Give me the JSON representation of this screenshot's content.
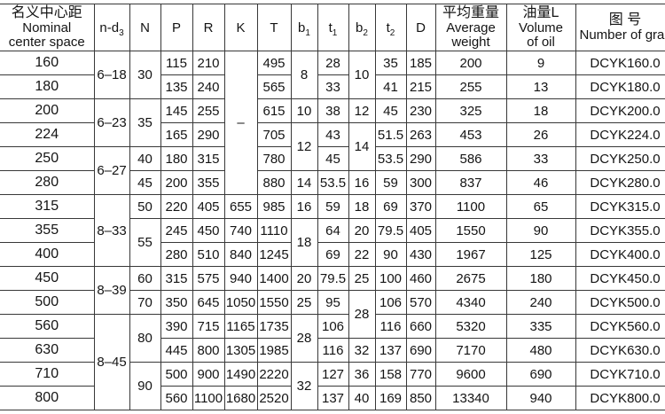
{
  "colors": {
    "background": "#ffffff",
    "border": "#383838",
    "text": "#141414"
  },
  "table": {
    "header": {
      "center": {
        "zh": "名义中心距",
        "en1": "Nominal",
        "en2": "center space"
      },
      "nd3": {
        "base": "n-d",
        "sub": "3"
      },
      "N": "N",
      "P": "P",
      "R": "R",
      "K": "K",
      "T": "T",
      "b1": {
        "base": "b",
        "sub": "1"
      },
      "t1": {
        "base": "t",
        "sub": "1"
      },
      "b2": {
        "base": "b",
        "sub": "2"
      },
      "t2": {
        "base": "t",
        "sub": "2"
      },
      "D": "D",
      "weight": {
        "zh": "平均重量",
        "en1": "Average",
        "en2": "weight"
      },
      "oil": {
        "zh": "油量L",
        "en1": "Volume",
        "en2": "of oil"
      },
      "graph": {
        "zh": "图 号",
        "en": "Number of graph n"
      }
    },
    "rows": [
      {
        "cells": [
          {
            "c": "center",
            "v": "160"
          },
          {
            "c": "nd3",
            "v": "6–18",
            "rs": 2
          },
          {
            "c": "N",
            "v": "30",
            "rs": 2
          },
          {
            "c": "P",
            "v": "115"
          },
          {
            "c": "R",
            "v": "210"
          },
          {
            "c": "K",
            "v": "–",
            "rs": 6
          },
          {
            "c": "T",
            "v": "495"
          },
          {
            "c": "b1",
            "v": "8",
            "rs": 2
          },
          {
            "c": "t1",
            "v": "28"
          },
          {
            "c": "b2",
            "v": "10",
            "rs": 2
          },
          {
            "c": "t2",
            "v": "35"
          },
          {
            "c": "D",
            "v": "185"
          },
          {
            "c": "weight",
            "v": "200"
          },
          {
            "c": "oil",
            "v": "9"
          },
          {
            "c": "graph",
            "v": "DCYK160.0"
          }
        ]
      },
      {
        "cells": [
          {
            "c": "center",
            "v": "180"
          },
          {
            "c": "P",
            "v": "135"
          },
          {
            "c": "R",
            "v": "240"
          },
          {
            "c": "T",
            "v": "565"
          },
          {
            "c": "t1",
            "v": "33"
          },
          {
            "c": "t2",
            "v": "41"
          },
          {
            "c": "D",
            "v": "215"
          },
          {
            "c": "weight",
            "v": "255"
          },
          {
            "c": "oil",
            "v": "13"
          },
          {
            "c": "graph",
            "v": "DCYK180.0"
          }
        ]
      },
      {
        "cells": [
          {
            "c": "center",
            "v": "200"
          },
          {
            "c": "nd3",
            "v": "6–23",
            "rs": 2
          },
          {
            "c": "N",
            "v": "35",
            "rs": 2
          },
          {
            "c": "P",
            "v": "145"
          },
          {
            "c": "R",
            "v": "255"
          },
          {
            "c": "T",
            "v": "615"
          },
          {
            "c": "b1",
            "v": "10"
          },
          {
            "c": "t1",
            "v": "38"
          },
          {
            "c": "b2",
            "v": "12"
          },
          {
            "c": "t2",
            "v": "45"
          },
          {
            "c": "D",
            "v": "230"
          },
          {
            "c": "weight",
            "v": "325"
          },
          {
            "c": "oil",
            "v": "18"
          },
          {
            "c": "graph",
            "v": "DCYK200.0"
          }
        ]
      },
      {
        "cells": [
          {
            "c": "center",
            "v": "224"
          },
          {
            "c": "P",
            "v": "165"
          },
          {
            "c": "R",
            "v": "290"
          },
          {
            "c": "T",
            "v": "705"
          },
          {
            "c": "b1",
            "v": "12",
            "rs": 2
          },
          {
            "c": "t1",
            "v": "43"
          },
          {
            "c": "b2",
            "v": "14",
            "rs": 2
          },
          {
            "c": "t2",
            "v": "51.5"
          },
          {
            "c": "D",
            "v": "263"
          },
          {
            "c": "weight",
            "v": "453"
          },
          {
            "c": "oil",
            "v": "26"
          },
          {
            "c": "graph",
            "v": "DCYK224.0"
          }
        ]
      },
      {
        "cells": [
          {
            "c": "center",
            "v": "250"
          },
          {
            "c": "nd3",
            "v": "6–27",
            "rs": 2
          },
          {
            "c": "N",
            "v": "40"
          },
          {
            "c": "P",
            "v": "180"
          },
          {
            "c": "R",
            "v": "315"
          },
          {
            "c": "T",
            "v": "780"
          },
          {
            "c": "t1",
            "v": "45"
          },
          {
            "c": "t2",
            "v": "53.5"
          },
          {
            "c": "D",
            "v": "290"
          },
          {
            "c": "weight",
            "v": "586"
          },
          {
            "c": "oil",
            "v": "33"
          },
          {
            "c": "graph",
            "v": "DCYK250.0"
          }
        ]
      },
      {
        "cells": [
          {
            "c": "center",
            "v": "280"
          },
          {
            "c": "N",
            "v": "45"
          },
          {
            "c": "P",
            "v": "200"
          },
          {
            "c": "R",
            "v": "355"
          },
          {
            "c": "T",
            "v": "880"
          },
          {
            "c": "b1",
            "v": "14"
          },
          {
            "c": "t1",
            "v": "53.5"
          },
          {
            "c": "b2",
            "v": "16"
          },
          {
            "c": "t2",
            "v": "59"
          },
          {
            "c": "D",
            "v": "300"
          },
          {
            "c": "weight",
            "v": "837"
          },
          {
            "c": "oil",
            "v": "46"
          },
          {
            "c": "graph",
            "v": "DCYK280.0"
          }
        ]
      },
      {
        "cells": [
          {
            "c": "center",
            "v": "315"
          },
          {
            "c": "nd3",
            "v": "8–33",
            "rs": 3
          },
          {
            "c": "N",
            "v": "50"
          },
          {
            "c": "P",
            "v": "220"
          },
          {
            "c": "R",
            "v": "405"
          },
          {
            "c": "K",
            "v": "655"
          },
          {
            "c": "T",
            "v": "985"
          },
          {
            "c": "b1",
            "v": "16"
          },
          {
            "c": "t1",
            "v": "59"
          },
          {
            "c": "b2",
            "v": "18"
          },
          {
            "c": "t2",
            "v": "69"
          },
          {
            "c": "D",
            "v": "370"
          },
          {
            "c": "weight",
            "v": "1100"
          },
          {
            "c": "oil",
            "v": "65"
          },
          {
            "c": "graph",
            "v": "DCYK315.0"
          }
        ]
      },
      {
        "cells": [
          {
            "c": "center",
            "v": "355"
          },
          {
            "c": "N",
            "v": "55",
            "rs": 2
          },
          {
            "c": "P",
            "v": "245"
          },
          {
            "c": "R",
            "v": "450"
          },
          {
            "c": "K",
            "v": "740"
          },
          {
            "c": "T",
            "v": "1110"
          },
          {
            "c": "b1",
            "v": "18",
            "rs": 2
          },
          {
            "c": "t1",
            "v": "64"
          },
          {
            "c": "b2",
            "v": "20"
          },
          {
            "c": "t2",
            "v": "79.5"
          },
          {
            "c": "D",
            "v": "405"
          },
          {
            "c": "weight",
            "v": "1550"
          },
          {
            "c": "oil",
            "v": "90"
          },
          {
            "c": "graph",
            "v": "DCYK355.0"
          }
        ]
      },
      {
        "cells": [
          {
            "c": "center",
            "v": "400"
          },
          {
            "c": "P",
            "v": "280"
          },
          {
            "c": "R",
            "v": "510"
          },
          {
            "c": "K",
            "v": "840"
          },
          {
            "c": "T",
            "v": "1245"
          },
          {
            "c": "t1",
            "v": "69"
          },
          {
            "c": "b2",
            "v": "22"
          },
          {
            "c": "t2",
            "v": "90"
          },
          {
            "c": "D",
            "v": "430"
          },
          {
            "c": "weight",
            "v": "1967"
          },
          {
            "c": "oil",
            "v": "125"
          },
          {
            "c": "graph",
            "v": "DCYK400.0"
          }
        ]
      },
      {
        "cells": [
          {
            "c": "center",
            "v": "450"
          },
          {
            "c": "nd3",
            "v": "8–39",
            "rs": 2
          },
          {
            "c": "N",
            "v": "60"
          },
          {
            "c": "P",
            "v": "315"
          },
          {
            "c": "R",
            "v": "575"
          },
          {
            "c": "K",
            "v": "940"
          },
          {
            "c": "T",
            "v": "1400"
          },
          {
            "c": "b1",
            "v": "20"
          },
          {
            "c": "t1",
            "v": "79.5"
          },
          {
            "c": "b2",
            "v": "25"
          },
          {
            "c": "t2",
            "v": "100"
          },
          {
            "c": "D",
            "v": "460"
          },
          {
            "c": "weight",
            "v": "2675"
          },
          {
            "c": "oil",
            "v": "180"
          },
          {
            "c": "graph",
            "v": "DCYK450.0"
          }
        ]
      },
      {
        "cells": [
          {
            "c": "center",
            "v": "500"
          },
          {
            "c": "N",
            "v": "70"
          },
          {
            "c": "P",
            "v": "350"
          },
          {
            "c": "R",
            "v": "645"
          },
          {
            "c": "K",
            "v": "1050"
          },
          {
            "c": "T",
            "v": "1550"
          },
          {
            "c": "b1",
            "v": "25"
          },
          {
            "c": "t1",
            "v": "95"
          },
          {
            "c": "b2",
            "v": "28",
            "rs": 2
          },
          {
            "c": "t2",
            "v": "106"
          },
          {
            "c": "D",
            "v": "570"
          },
          {
            "c": "weight",
            "v": "4340"
          },
          {
            "c": "oil",
            "v": "240"
          },
          {
            "c": "graph",
            "v": "DCYK500.0"
          }
        ]
      },
      {
        "cells": [
          {
            "c": "center",
            "v": "560"
          },
          {
            "c": "nd3",
            "v": "8–45",
            "rs": 4
          },
          {
            "c": "N",
            "v": "80",
            "rs": 2
          },
          {
            "c": "P",
            "v": "390"
          },
          {
            "c": "R",
            "v": "715"
          },
          {
            "c": "K",
            "v": "1165"
          },
          {
            "c": "T",
            "v": "1735"
          },
          {
            "c": "b1",
            "v": "28",
            "rs": 2
          },
          {
            "c": "t1",
            "v": "106"
          },
          {
            "c": "t2",
            "v": "116"
          },
          {
            "c": "D",
            "v": "660"
          },
          {
            "c": "weight",
            "v": "5320"
          },
          {
            "c": "oil",
            "v": "335"
          },
          {
            "c": "graph",
            "v": "DCYK560.0"
          }
        ]
      },
      {
        "cells": [
          {
            "c": "center",
            "v": "630"
          },
          {
            "c": "P",
            "v": "445"
          },
          {
            "c": "R",
            "v": "800"
          },
          {
            "c": "K",
            "v": "1305"
          },
          {
            "c": "T",
            "v": "1985"
          },
          {
            "c": "t1",
            "v": "116"
          },
          {
            "c": "b2",
            "v": "32"
          },
          {
            "c": "t2",
            "v": "137"
          },
          {
            "c": "D",
            "v": "690"
          },
          {
            "c": "weight",
            "v": "7170"
          },
          {
            "c": "oil",
            "v": "480"
          },
          {
            "c": "graph",
            "v": "DCYK630.0"
          }
        ]
      },
      {
        "cells": [
          {
            "c": "center",
            "v": "710"
          },
          {
            "c": "N",
            "v": "90",
            "rs": 2
          },
          {
            "c": "P",
            "v": "500"
          },
          {
            "c": "R",
            "v": "900"
          },
          {
            "c": "K",
            "v": "1490"
          },
          {
            "c": "T",
            "v": "2220"
          },
          {
            "c": "b1",
            "v": "32",
            "rs": 2
          },
          {
            "c": "t1",
            "v": "127"
          },
          {
            "c": "b2",
            "v": "36"
          },
          {
            "c": "t2",
            "v": "158"
          },
          {
            "c": "D",
            "v": "770"
          },
          {
            "c": "weight",
            "v": "9600"
          },
          {
            "c": "oil",
            "v": "690"
          },
          {
            "c": "graph",
            "v": "DCYK710.0"
          }
        ]
      },
      {
        "cells": [
          {
            "c": "center",
            "v": "800"
          },
          {
            "c": "P",
            "v": "560"
          },
          {
            "c": "R",
            "v": "1100"
          },
          {
            "c": "K",
            "v": "1680"
          },
          {
            "c": "T",
            "v": "2520"
          },
          {
            "c": "t1",
            "v": "137"
          },
          {
            "c": "b2",
            "v": "40"
          },
          {
            "c": "t2",
            "v": "169"
          },
          {
            "c": "D",
            "v": "850"
          },
          {
            "c": "weight",
            "v": "13340"
          },
          {
            "c": "oil",
            "v": "940"
          },
          {
            "c": "graph",
            "v": "DCYK800.0"
          }
        ]
      }
    ]
  }
}
